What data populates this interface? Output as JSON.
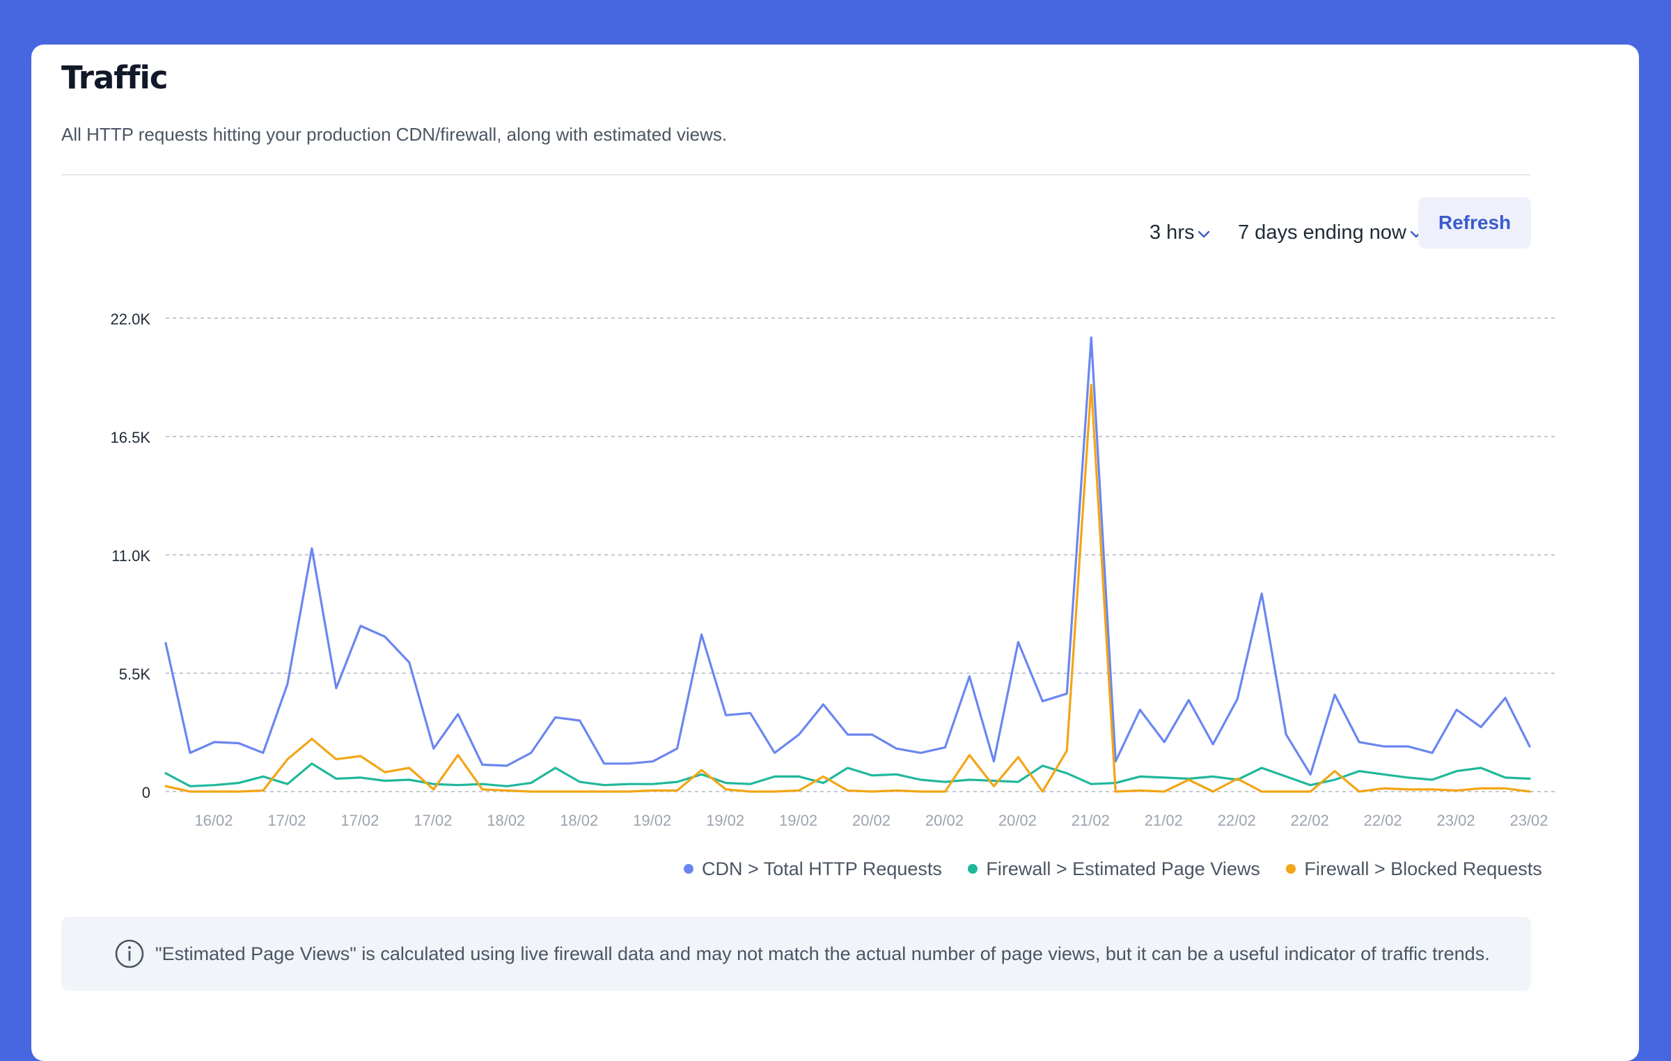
{
  "header": {
    "title": "Traffic",
    "subtitle": "All HTTP requests hitting your production CDN/firewall, along with estimated views."
  },
  "controls": {
    "interval_label": "3 hrs",
    "range_label": "7 days ending now",
    "refresh_label": "Refresh"
  },
  "colors": {
    "cdn": "#6a86f0",
    "page_views": "#1fb89a",
    "blocked": "#f2a516",
    "background": "#4767e0"
  },
  "chart_data": {
    "type": "line",
    "ylim": [
      0,
      22000
    ],
    "yticks": [
      0,
      5500,
      11000,
      16500,
      22000
    ],
    "ytick_labels": [
      "0",
      "5.5K",
      "11.0K",
      "16.5K",
      "22.0K"
    ],
    "xtick_labels": [
      "16/02",
      "17/02",
      "17/02",
      "17/02",
      "18/02",
      "18/02",
      "19/02",
      "19/02",
      "19/02",
      "20/02",
      "20/02",
      "20/02",
      "21/02",
      "21/02",
      "22/02",
      "22/02",
      "22/02",
      "23/02",
      "23/02"
    ],
    "grid": true,
    "legend_position": "bottom-right",
    "series": [
      {
        "name": "CDN > Total HTTP Requests",
        "values": [
          6900,
          1800,
          2300,
          2250,
          1800,
          5000,
          11300,
          4800,
          7700,
          7200,
          6000,
          2000,
          3600,
          1250,
          1200,
          1800,
          3450,
          3300,
          1300,
          1300,
          1400,
          2000,
          7300,
          3550,
          3650,
          1800,
          2650,
          4050,
          2650,
          2650,
          2000,
          1800,
          2050,
          5350,
          1400,
          6950,
          4200,
          4550,
          21100,
          1400,
          3800,
          2300,
          4250,
          2200,
          4300,
          9200,
          2650,
          800,
          4500,
          2300,
          2100,
          2100,
          1800,
          3800,
          3000,
          4350,
          2100
        ]
      },
      {
        "name": "Firewall > Estimated Page Views",
        "values": [
          850,
          250,
          300,
          400,
          700,
          350,
          1300,
          600,
          650,
          500,
          550,
          350,
          300,
          350,
          250,
          400,
          1100,
          450,
          300,
          350,
          350,
          450,
          800,
          400,
          350,
          700,
          700,
          400,
          1100,
          750,
          800,
          550,
          450,
          550,
          500,
          450,
          1200,
          850,
          350,
          400,
          700,
          650,
          600,
          700,
          550,
          1100,
          700,
          300,
          550,
          950,
          800,
          650,
          550,
          950,
          1100,
          650,
          600
        ]
      },
      {
        "name": "Firewall > Blocked Requests",
        "values": [
          250,
          0,
          0,
          0,
          50,
          1500,
          2450,
          1500,
          1650,
          900,
          1100,
          100,
          1700,
          100,
          50,
          0,
          0,
          0,
          0,
          0,
          50,
          50,
          1000,
          100,
          0,
          0,
          50,
          700,
          50,
          0,
          50,
          0,
          0,
          1700,
          250,
          1600,
          0,
          1900,
          18900,
          0,
          50,
          0,
          550,
          0,
          600,
          0,
          0,
          0,
          950,
          0,
          150,
          100,
          100,
          50,
          150,
          150,
          0
        ]
      }
    ]
  },
  "info_note": "\"Estimated Page Views\" is calculated using live firewall data and may not match the actual number of page views, but it can be a useful indicator of traffic trends."
}
